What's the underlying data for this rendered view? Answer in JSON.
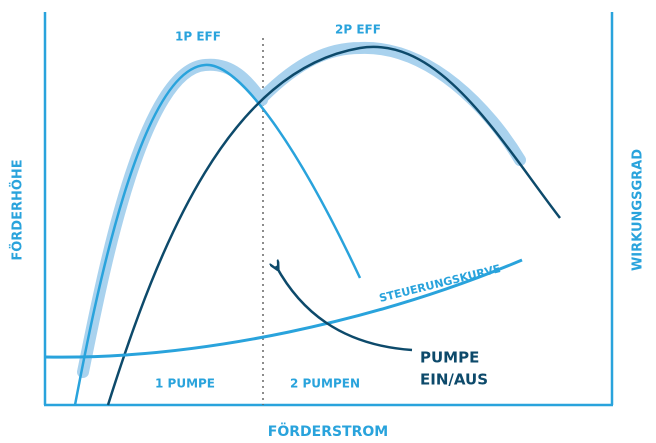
{
  "labels": {
    "one_pump_eff": "1P EFF",
    "two_pump_eff": "2P EFF",
    "y_left": "FÖRDERHÖHE",
    "y_right": "WIRKUNGSGRAD",
    "control_curve": "STEUERUNGSKURVE",
    "switch_line1": "PUMPE",
    "switch_line2": "EIN/AUS",
    "region_one": "1 PUMPE",
    "region_two": "2 PUMPEN",
    "x_axis": "FÖRDERSTROM"
  }
}
